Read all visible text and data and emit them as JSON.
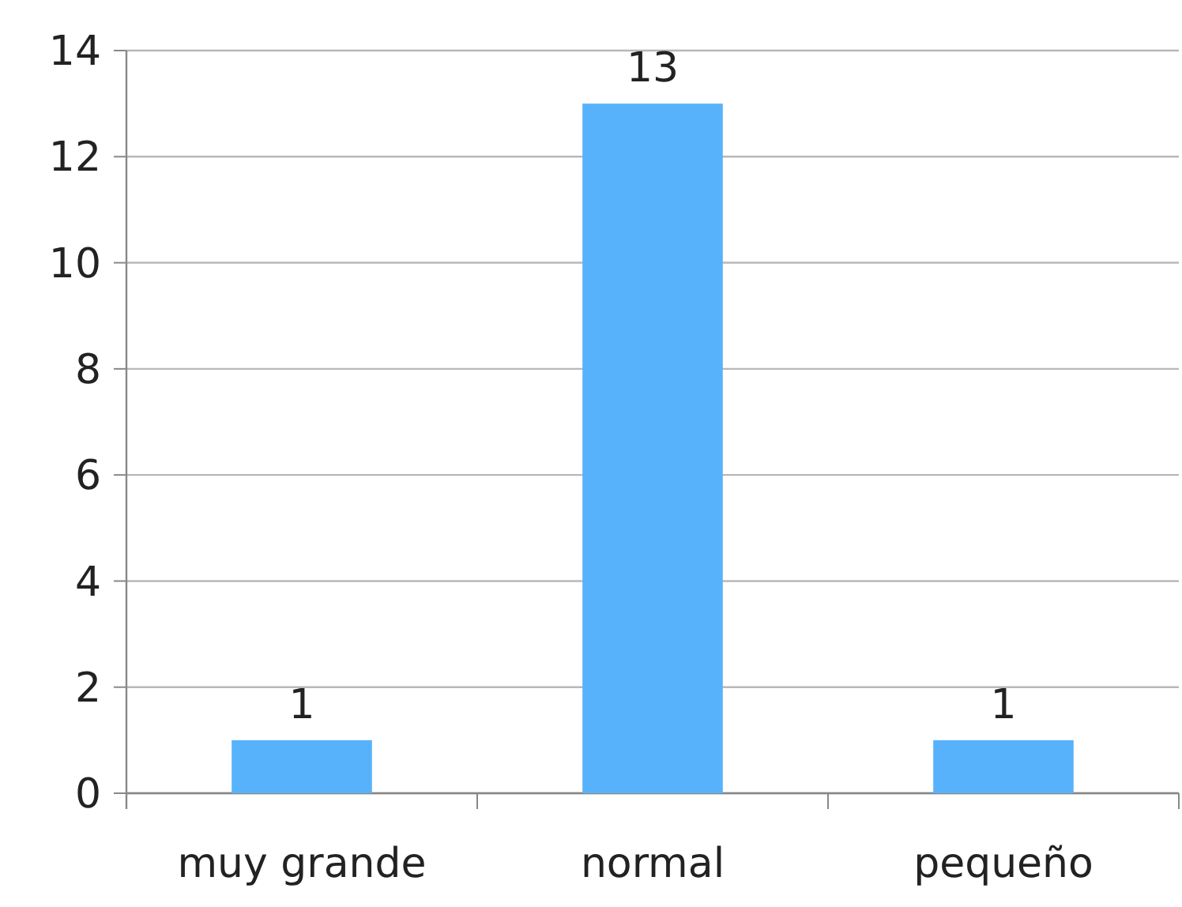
{
  "chart_data": {
    "type": "bar",
    "categories": [
      "muy grande",
      "normal",
      "pequeño"
    ],
    "values": [
      1,
      13,
      1
    ],
    "color": "#58b2fb",
    "ylim": [
      0,
      14
    ],
    "yticks": [
      0,
      2,
      4,
      6,
      8,
      10,
      12,
      14
    ],
    "grid": "y",
    "data_labels": true
  }
}
